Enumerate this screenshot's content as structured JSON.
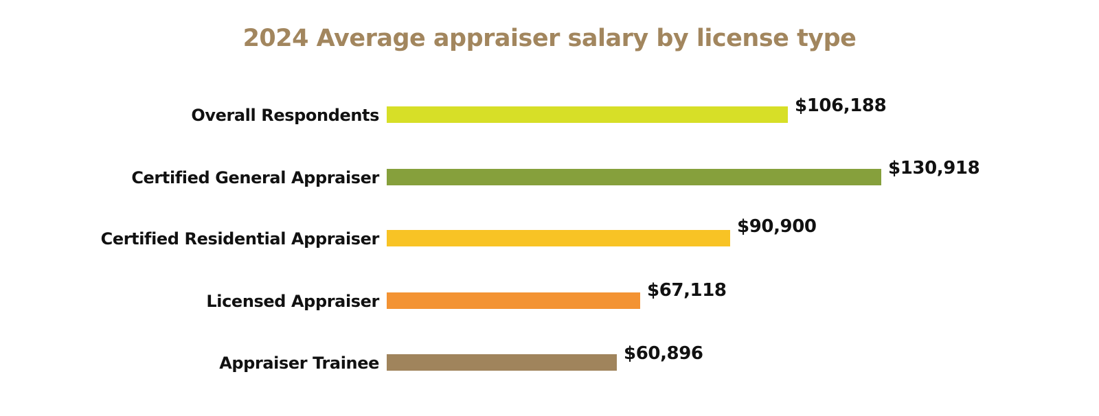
{
  "chart_data": {
    "type": "bar",
    "orientation": "horizontal",
    "title": "2024 Average appraiser salary by license type",
    "xlabel": "",
    "ylabel": "",
    "grid": false,
    "legend": "none",
    "categories": [
      "Overall Respondents",
      "Certified General Appraiser",
      "Certified Residential Appraiser",
      "Licensed Appraiser",
      "Appraiser Trainee"
    ],
    "values": [
      106188,
      130918,
      90900,
      67118,
      60896
    ],
    "value_labels": [
      "$106,188",
      "$130,918",
      "$90,900",
      "$67,118",
      "$60,896"
    ],
    "colors": [
      "#d7df27",
      "#86a03c",
      "#f8c325",
      "#f39333",
      "#a0845c"
    ]
  },
  "title_color": "#a2865e"
}
